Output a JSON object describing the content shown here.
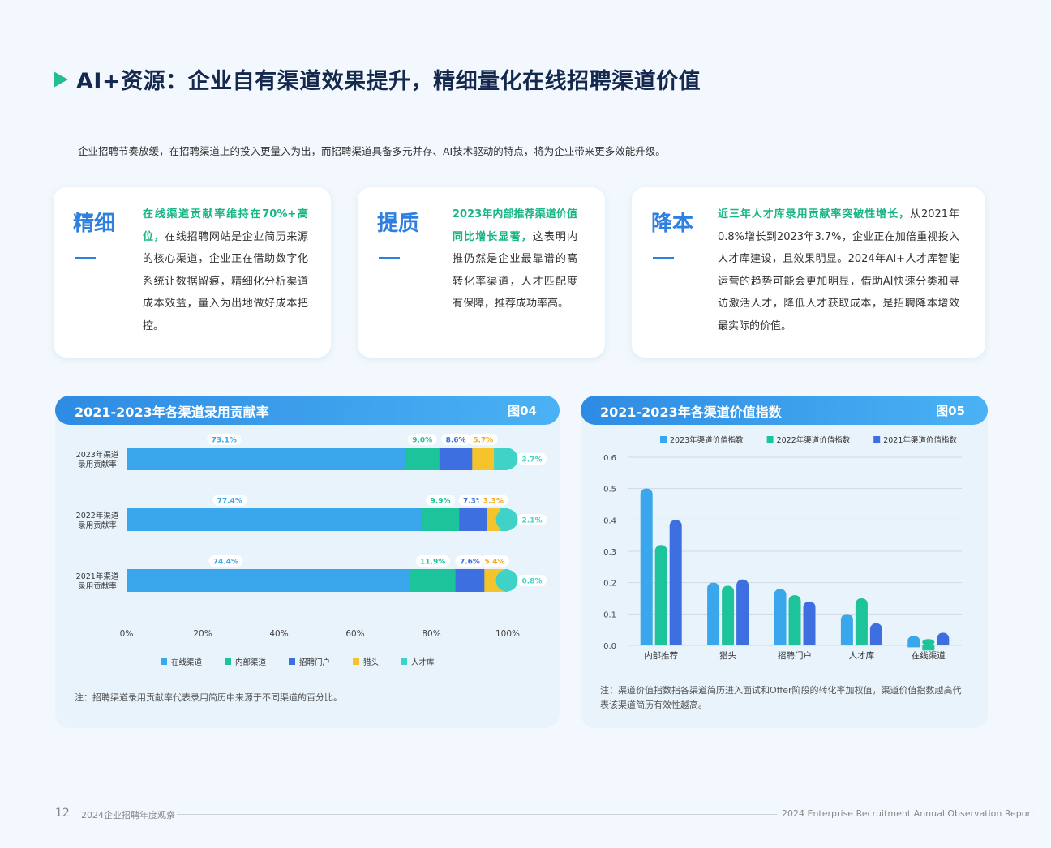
{
  "header": {
    "title": "AI+资源：企业自有渠道效果提升，精细量化在线招聘渠道价值",
    "intro": "企业招聘节奏放缓，在招聘渠道上的投入更量入为出，而招聘渠道具备多元并存、AI技术驱动的特点，将为企业带来更多效能升级。"
  },
  "cards": [
    {
      "heading": "精细",
      "highlight": "在线渠道贡献率维持在70%+高位，",
      "text": "在线招聘网站是企业简历来源的核心渠道，企业正在借助数字化系统让数据留痕，精细化分析渠道成本效益，量入为出地做好成本把控。"
    },
    {
      "heading": "提质",
      "highlight": "2023年内部推荐渠道价值同比增长显著，",
      "text": "这表明内推仍然是企业最靠谱的高转化率渠道，人才匹配度有保障，推荐成功率高。"
    },
    {
      "heading": "降本",
      "highlight": "近三年人才库录用贡献率突破性增长，",
      "text": "从2021年0.8%增长到2023年3.7%，企业正在加倍重视投入人才库建设，且效果明显。2024年AI+人才库智能运营的趋势可能会更加明显，借助AI快速分类和寻访激活人才，降低人才获取成本，是招聘降本增效最实际的价值。"
    }
  ],
  "panel_left": {
    "title": "2021-2023年各渠道录用贡献率",
    "tag": "图04",
    "note": "注：招聘渠道录用贡献率代表录用简历中来源于不同渠道的百分比。"
  },
  "panel_right": {
    "title": "2021-2023年各渠道价值指数",
    "tag": "图05",
    "note": "注：渠道价值指数指各渠道简历进入面试和Offer阶段的转化率加权值，渠道价值指数越高代表该渠道简历有效性越高。"
  },
  "footer": {
    "page": "12",
    "left": "2024企业招聘年度观察",
    "right": "2024 Enterprise Recruitment Annual Observation Report"
  },
  "colors": {
    "online": "#3aa6ec",
    "internal": "#1dc39a",
    "portal": "#3d6fe0",
    "headhunter": "#f5c42c",
    "talentpool": "#3fd3c8",
    "accent": "#2f7fe0",
    "highlight": "#17b585"
  },
  "chart_data": [
    {
      "type": "bar",
      "orientation": "horizontal",
      "stacked": true,
      "categories": [
        "2023年渠道\n录用贡献率",
        "2022年渠道\n录用贡献率",
        "2021年渠道\n录用贡献率"
      ],
      "series": [
        {
          "name": "在线渠道",
          "values": [
            73.1,
            77.4,
            74.4
          ],
          "labels": [
            "73.1%",
            "77.4%",
            "74.4%"
          ]
        },
        {
          "name": "内部渠道",
          "values": [
            9.0,
            9.9,
            11.9
          ],
          "labels": [
            "9.0%",
            "9.9%",
            "11.9%"
          ]
        },
        {
          "name": "招聘门户",
          "values": [
            8.6,
            7.3,
            7.6
          ],
          "labels": [
            "8.6%",
            "7.3%",
            "7.6%"
          ]
        },
        {
          "name": "猎头",
          "values": [
            5.7,
            3.3,
            5.4
          ],
          "labels": [
            "5.7%",
            "3.3%",
            "5.4%"
          ]
        },
        {
          "name": "人才库",
          "values": [
            3.7,
            2.1,
            0.8
          ],
          "labels": [
            "3.7%",
            "2.1%",
            "0.8%"
          ]
        }
      ],
      "xticks": [
        "0%",
        "20%",
        "40%",
        "60%",
        "80%",
        "100%"
      ],
      "xlim": [
        0,
        100
      ],
      "legend": "bottom"
    },
    {
      "type": "bar",
      "categories": [
        "内部推荐",
        "猎头",
        "招聘门户",
        "人才库",
        "在线渠道"
      ],
      "series": [
        {
          "name": "2023年渠道价值指数",
          "values": [
            0.5,
            0.2,
            0.18,
            0.1,
            0.03
          ]
        },
        {
          "name": "2022年渠道价值指数",
          "values": [
            0.32,
            0.19,
            0.16,
            0.15,
            0.02
          ]
        },
        {
          "name": "2021年渠道价值指数",
          "values": [
            0.4,
            0.21,
            0.14,
            0.07,
            0.04
          ]
        }
      ],
      "yticks": [
        "0.0",
        "0.1",
        "0.2",
        "0.3",
        "0.4",
        "0.5",
        "0.6"
      ],
      "ylim": [
        0,
        0.6
      ],
      "grid": true,
      "legend": "top"
    }
  ]
}
